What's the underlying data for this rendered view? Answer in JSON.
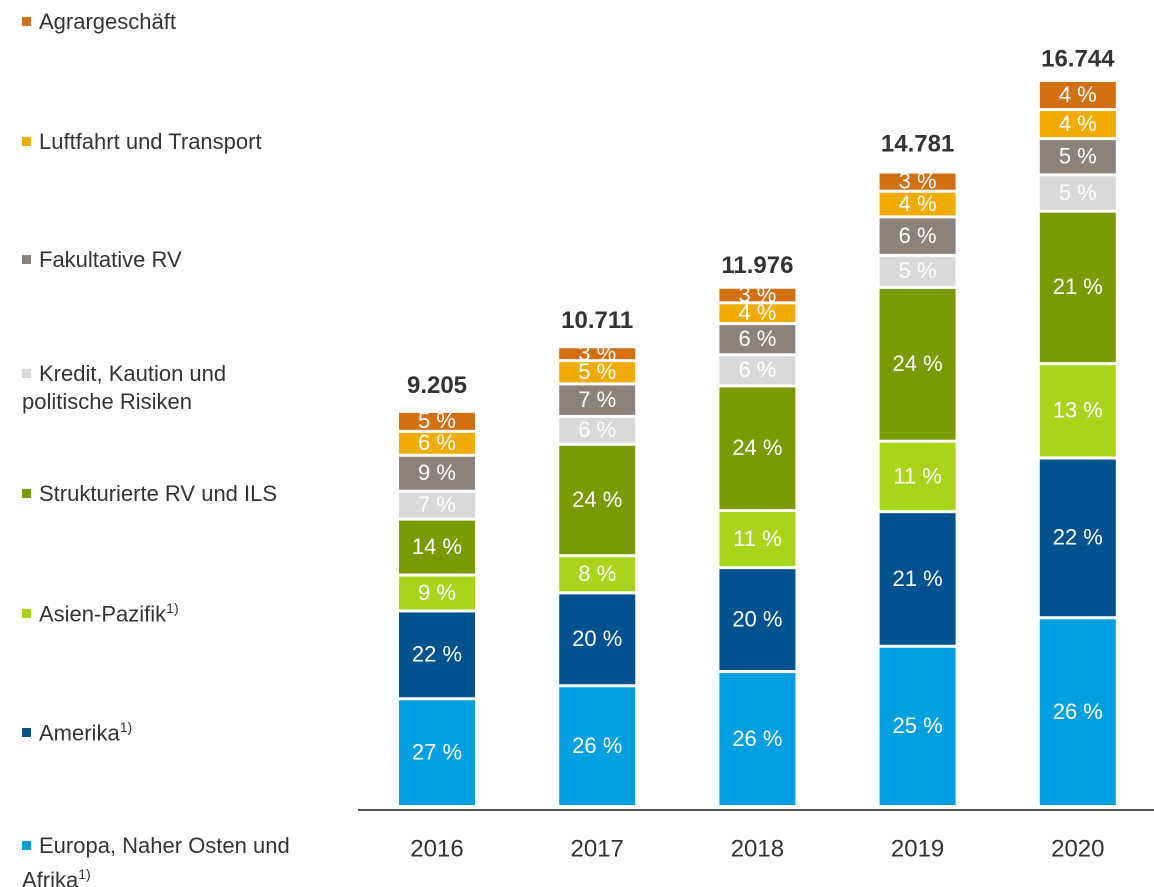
{
  "chart_data": {
    "type": "stacked_bar",
    "categories": [
      "2016",
      "2017",
      "2018",
      "2019",
      "2020"
    ],
    "totals": [
      {
        "value": 9205,
        "label": "9.205"
      },
      {
        "value": 10711,
        "label": "10.711"
      },
      {
        "value": 11976,
        "label": "11.976"
      },
      {
        "value": 14781,
        "label": "14.781"
      },
      {
        "value": 16744,
        "label": "16.744"
      }
    ],
    "series": [
      {
        "name": "Europa, Naher Osten und Afrika",
        "footnote": "1)",
        "color": "#009fe0",
        "values": [
          27,
          26,
          26,
          25,
          26
        ],
        "value_labels": [
          "27 %",
          "26 %",
          "26 %",
          "25 %",
          "26 %"
        ]
      },
      {
        "name": "Amerika",
        "footnote": "1)",
        "color": "#00528f",
        "values": [
          22,
          20,
          20,
          21,
          22
        ],
        "value_labels": [
          "22 %",
          "20 %",
          "20 %",
          "21 %",
          "22 %"
        ]
      },
      {
        "name": "Asien-Pazifik",
        "footnote": "1)",
        "color": "#a8d51a",
        "values": [
          9,
          8,
          11,
          11,
          13
        ],
        "value_labels": [
          "9 %",
          "8 %",
          "11 %",
          "11 %",
          "13 %"
        ]
      },
      {
        "name": "Strukturierte RV und ILS",
        "color": "#7a9a01",
        "values": [
          14,
          24,
          24,
          24,
          21
        ],
        "value_labels": [
          "14 %",
          "24 %",
          "24 %",
          "24 %",
          "21 %"
        ]
      },
      {
        "name": "Kredit, Kaution und politische Risiken",
        "color": "#d9d9d9",
        "values": [
          7,
          6,
          6,
          5,
          5
        ],
        "value_labels": [
          "7 %",
          "6 %",
          "6 %",
          "5 %",
          "5 %"
        ]
      },
      {
        "name": "Fakultative RV",
        "color": "#8c8279",
        "values": [
          9,
          7,
          6,
          6,
          5
        ],
        "value_labels": [
          "9 %",
          "7 %",
          "6 %",
          "6 %",
          "5 %"
        ]
      },
      {
        "name": "Luftfahrt und Transport",
        "color": "#f0ab00",
        "values": [
          6,
          5,
          4,
          4,
          4
        ],
        "value_labels": [
          "6 %",
          "5 %",
          "4 %",
          "4 %",
          "4 %"
        ]
      },
      {
        "name": "Agrargeschäft",
        "color": "#d26f13",
        "values": [
          5,
          3,
          3,
          3,
          4
        ],
        "value_labels": [
          "5 %",
          "3 %",
          "3 %",
          "3 %",
          "4 %"
        ]
      }
    ]
  }
}
